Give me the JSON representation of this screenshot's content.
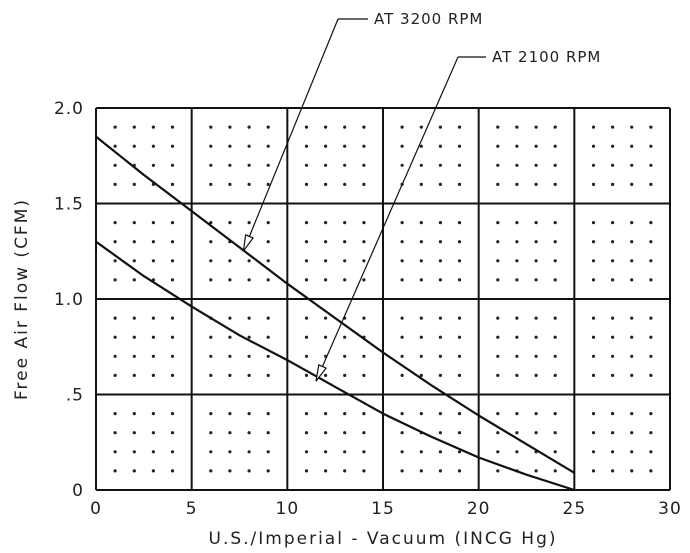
{
  "chart_data": {
    "type": "line",
    "xlabel": "U.S./Imperial - Vacuum (INCG Hg)",
    "ylabel": "Free Air Flow (CFM)",
    "xlim": [
      0,
      30
    ],
    "ylim": [
      0,
      2.0
    ],
    "x_ticks": [
      0,
      5,
      10,
      15,
      20,
      25,
      30
    ],
    "x_tick_labels": [
      "0",
      "5",
      "10",
      "15",
      "20",
      "25",
      "30"
    ],
    "y_ticks": [
      0,
      0.5,
      1.0,
      1.5,
      2.0
    ],
    "y_tick_labels": [
      "0",
      ".5",
      "1.0",
      "1.5",
      "2.0"
    ],
    "grid": true,
    "series": [
      {
        "name": "AT 3200 RPM",
        "x": [
          0,
          2.5,
          5,
          7.5,
          10,
          12.5,
          15,
          17.5,
          20,
          22.5,
          25
        ],
        "y": [
          1.85,
          1.65,
          1.46,
          1.27,
          1.08,
          0.9,
          0.72,
          0.55,
          0.39,
          0.24,
          0.09
        ]
      },
      {
        "name": "AT 2100 RPM",
        "x": [
          0,
          2.5,
          5,
          7.5,
          10,
          12.5,
          15,
          17.5,
          20,
          22.5,
          25
        ],
        "y": [
          1.3,
          1.12,
          0.96,
          0.81,
          0.68,
          0.54,
          0.4,
          0.28,
          0.17,
          0.08,
          0.0
        ]
      }
    ],
    "annotations": [
      {
        "text": "AT 3200 RPM",
        "points_to": {
          "x": 7.7,
          "y": 1.25
        }
      },
      {
        "text": "AT 2100 RPM",
        "points_to": {
          "x": 11.5,
          "y": 0.57
        }
      }
    ]
  }
}
